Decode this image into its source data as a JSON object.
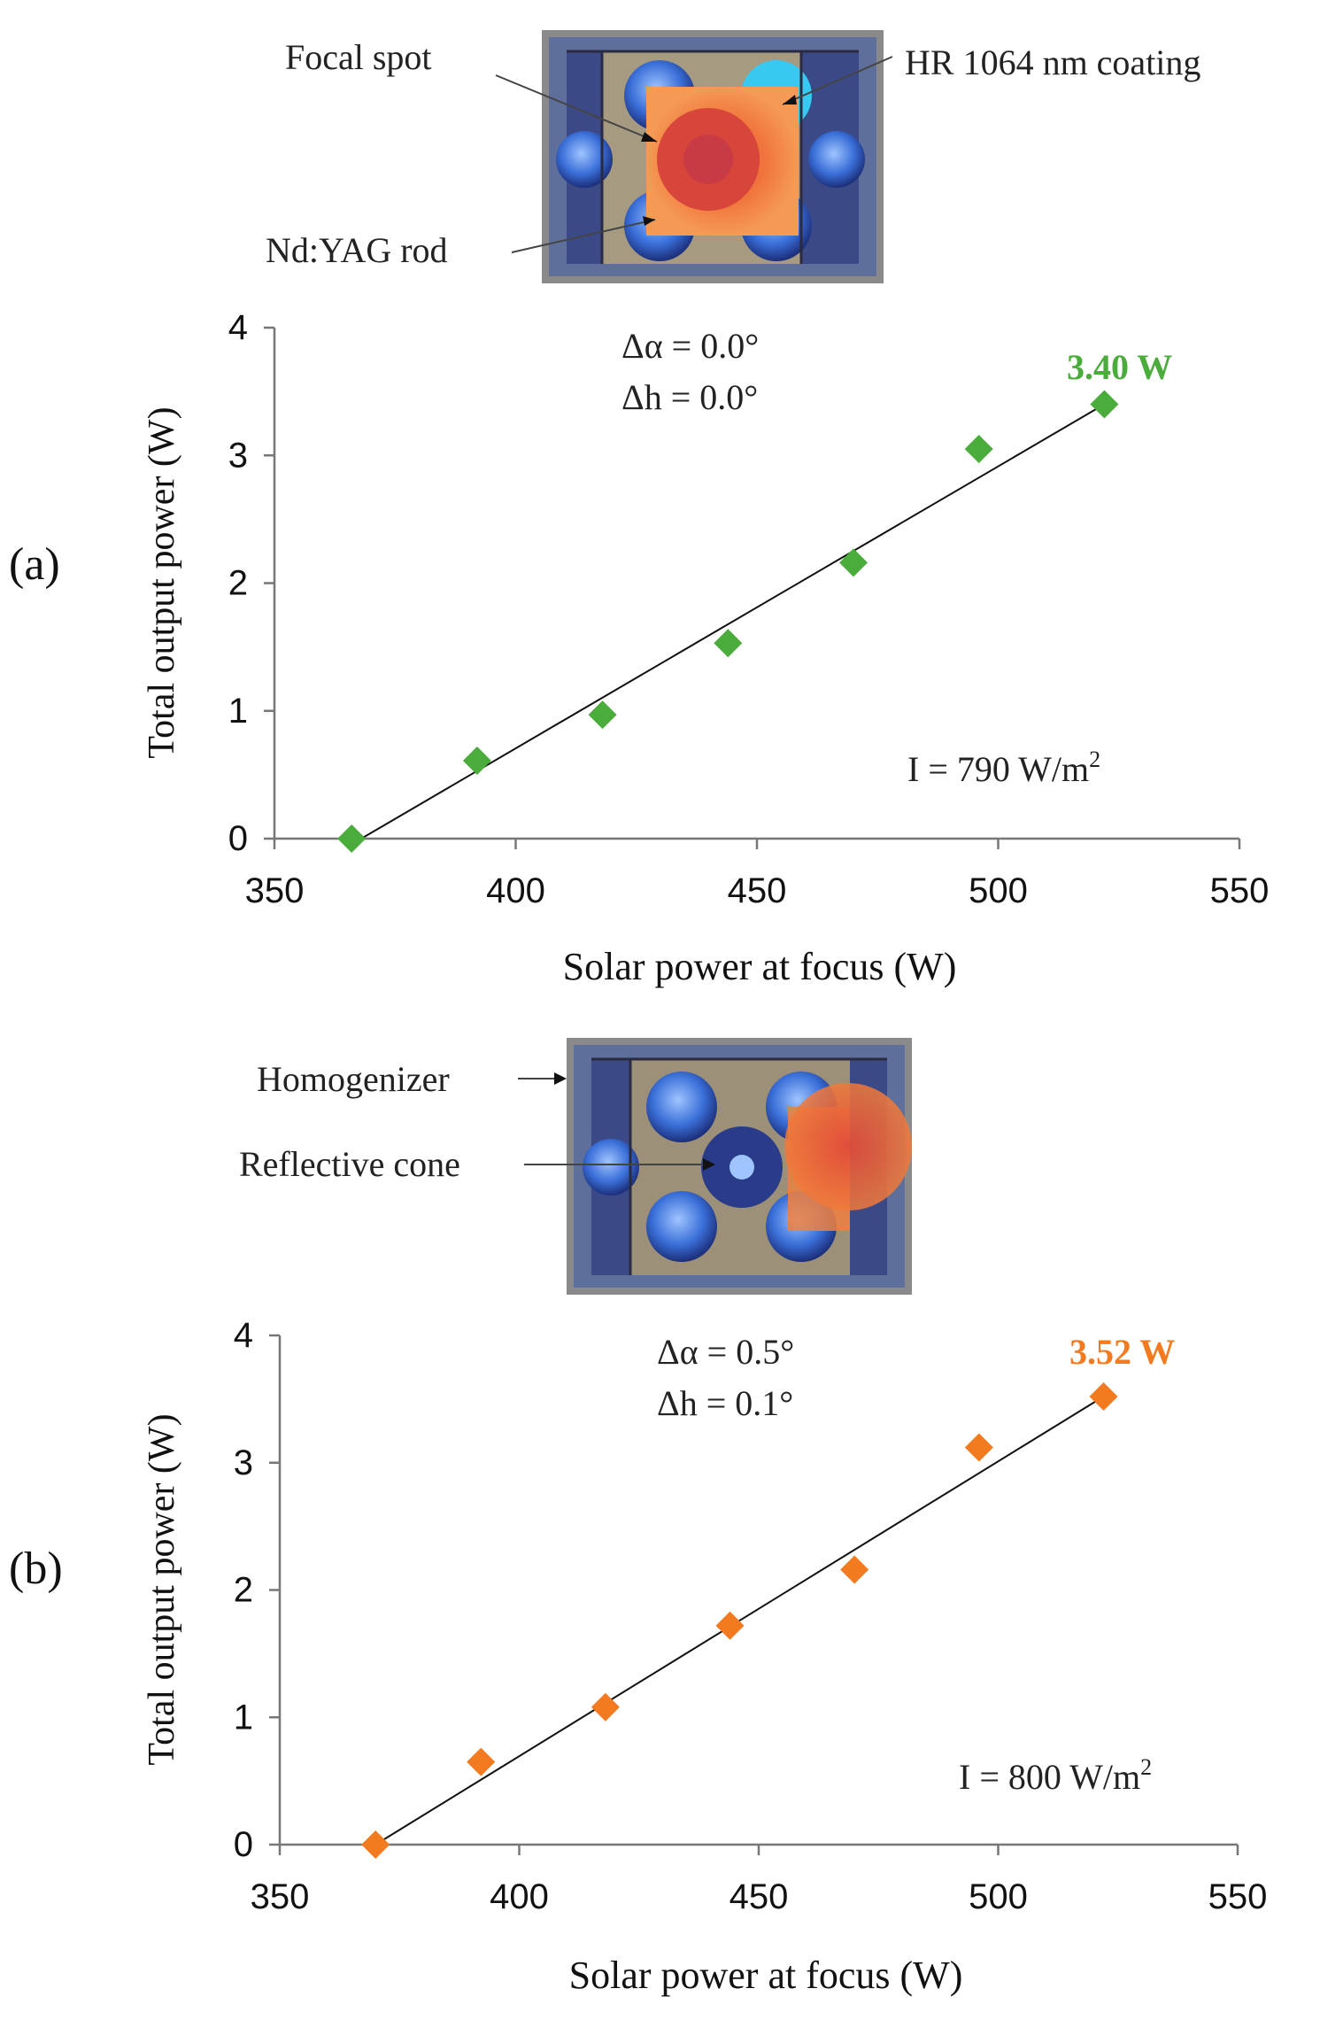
{
  "chart_data": [
    {
      "type": "scatter",
      "panel_label": "(a)",
      "xlabel": "Solar power at focus (W)",
      "ylabel": "Total output power (W)",
      "xlim": [
        350,
        550
      ],
      "ylim": [
        0,
        4
      ],
      "xticks": [
        "350",
        "400",
        "450",
        "500",
        "550"
      ],
      "yticks": [
        "0",
        "1",
        "2",
        "3",
        "4"
      ],
      "marker_color": "#4aac3a",
      "series": [
        {
          "x": [
            366,
            392,
            418,
            444,
            470,
            496,
            522
          ],
          "y": [
            0.0,
            0.61,
            0.97,
            1.53,
            2.16,
            3.05,
            3.4
          ]
        }
      ],
      "fit_line": {
        "x": [
          368,
          522
        ],
        "y": [
          0.0,
          3.4
        ]
      },
      "annotations": {
        "delta_alpha": "Δα = 0.0°",
        "delta_h": "Δh = 0.0°",
        "peak_label": "3.40 W",
        "irradiance_prefix": "I = 790 W/m",
        "irradiance_exp": "2"
      },
      "photo_labels": [
        "Focal spot",
        "HR 1064 nm coating",
        "Nd:YAG rod"
      ]
    },
    {
      "type": "scatter",
      "panel_label": "(b)",
      "xlabel": "Solar power at focus (W)",
      "ylabel": "Total output power (W)",
      "xlim": [
        350,
        550
      ],
      "ylim": [
        0,
        4
      ],
      "xticks": [
        "350",
        "400",
        "450",
        "500",
        "550"
      ],
      "yticks": [
        "0",
        "1",
        "2",
        "3",
        "4"
      ],
      "marker_color": "#f47a1f",
      "series": [
        {
          "x": [
            370,
            392,
            418,
            444,
            470,
            496,
            522
          ],
          "y": [
            0.0,
            0.65,
            1.08,
            1.72,
            2.16,
            3.12,
            3.52
          ]
        }
      ],
      "fit_line": {
        "x": [
          370,
          522
        ],
        "y": [
          0.0,
          3.52
        ]
      },
      "annotations": {
        "delta_alpha": "Δα = 0.5°",
        "delta_h": "Δh = 0.1°",
        "peak_label": "3.52 W",
        "irradiance_prefix": "I = 800 W/m",
        "irradiance_exp": "2"
      },
      "photo_labels": [
        "Homogenizer",
        "Reflective cone"
      ]
    }
  ]
}
